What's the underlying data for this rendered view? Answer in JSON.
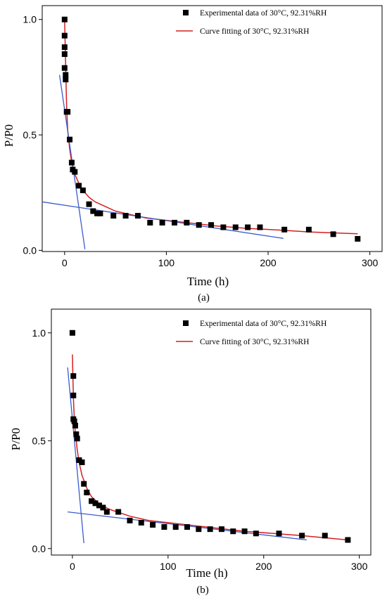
{
  "chart_data": [
    {
      "panel_label": "(a)",
      "type": "scatter",
      "xlabel": "Time (h)",
      "ylabel": "P/P0",
      "xlim": [
        -22,
        312
      ],
      "ylim": [
        -0.005,
        1.06
      ],
      "x_ticks": [
        0,
        100,
        200,
        300
      ],
      "y_ticks": [
        0.0,
        0.5,
        1.0
      ],
      "y_tick_labels": [
        "0.0",
        "0.5",
        "1.0"
      ],
      "legend": {
        "position": "top-right",
        "entries": [
          "Experimental data of 30°C, 92.31%RH",
          "Curve fitting of 30°C, 92.31%RH"
        ]
      },
      "series": [
        {
          "name": "Experimental data of 30°C, 92.31%RH",
          "kind": "points",
          "color": "#000000",
          "x": [
            0,
            0,
            0,
            0,
            0,
            1,
            1,
            2,
            3,
            5,
            7,
            8,
            10,
            14,
            18,
            24,
            28,
            32,
            35,
            48,
            60,
            72,
            84,
            96,
            108,
            120,
            132,
            144,
            156,
            168,
            180,
            192,
            216,
            240,
            264,
            288
          ],
          "y": [
            1.0,
            0.93,
            0.88,
            0.85,
            0.79,
            0.76,
            0.74,
            0.6,
            0.6,
            0.48,
            0.38,
            0.35,
            0.34,
            0.28,
            0.26,
            0.2,
            0.17,
            0.16,
            0.16,
            0.15,
            0.15,
            0.15,
            0.12,
            0.12,
            0.12,
            0.12,
            0.11,
            0.11,
            0.1,
            0.1,
            0.1,
            0.1,
            0.09,
            0.09,
            0.07,
            0.05
          ]
        },
        {
          "name": "Curve fitting of 30°C, 92.31%RH",
          "kind": "curve",
          "color": "#d42020",
          "x": [
            0,
            1,
            2,
            3,
            5,
            7,
            10,
            14,
            18,
            24,
            30,
            40,
            50,
            60,
            80,
            100,
            120,
            150,
            180,
            210,
            240,
            288
          ],
          "y": [
            1.0,
            0.8,
            0.62,
            0.52,
            0.44,
            0.38,
            0.33,
            0.29,
            0.26,
            0.23,
            0.21,
            0.19,
            0.17,
            0.16,
            0.14,
            0.13,
            0.12,
            0.105,
            0.095,
            0.088,
            0.08,
            0.072
          ]
        },
        {
          "kind": "line",
          "color": "#3a5bd0",
          "x": [
            -5,
            20
          ],
          "y": [
            0.76,
            0.005
          ]
        },
        {
          "kind": "line",
          "color": "#3a5bd0",
          "x": [
            -22,
            215
          ],
          "y": [
            0.21,
            0.052
          ]
        }
      ]
    },
    {
      "panel_label": "(b)",
      "type": "scatter",
      "xlabel": "Time (h)",
      "ylabel": "P/P0",
      "xlim": [
        -22,
        312
      ],
      "ylim": [
        -0.03,
        1.11
      ],
      "x_ticks": [
        0,
        100,
        200,
        300
      ],
      "y_ticks": [
        0.0,
        0.5,
        1.0
      ],
      "y_tick_labels": [
        "0.0",
        "0.5",
        "1.0"
      ],
      "legend": {
        "position": "top-right",
        "entries": [
          "Experimental data of 30°C, 92.31%RH",
          "Curve fitting of 30°C, 92.31%RH"
        ]
      },
      "series": [
        {
          "name": "Experimental data of 30°C, 92.31%RH",
          "kind": "points",
          "color": "#000000",
          "x": [
            0,
            1,
            1,
            1,
            2,
            3,
            4,
            5,
            7,
            10,
            12,
            15,
            20,
            24,
            28,
            32,
            36,
            48,
            60,
            72,
            84,
            96,
            108,
            120,
            132,
            144,
            156,
            168,
            180,
            192,
            216,
            240,
            264,
            288
          ],
          "y": [
            1.0,
            0.8,
            0.71,
            0.6,
            0.59,
            0.57,
            0.53,
            0.51,
            0.41,
            0.4,
            0.3,
            0.26,
            0.22,
            0.21,
            0.2,
            0.19,
            0.17,
            0.17,
            0.13,
            0.12,
            0.11,
            0.1,
            0.1,
            0.1,
            0.09,
            0.09,
            0.09,
            0.08,
            0.08,
            0.07,
            0.07,
            0.06,
            0.06,
            0.04
          ]
        },
        {
          "name": "Curve fitting of 30°C, 92.31%RH",
          "kind": "curve",
          "color": "#d42020",
          "x": [
            0,
            1,
            2,
            3,
            5,
            7,
            10,
            15,
            20,
            30,
            40,
            60,
            80,
            100,
            120,
            150,
            180,
            210,
            240,
            288
          ],
          "y": [
            0.9,
            0.7,
            0.6,
            0.54,
            0.46,
            0.4,
            0.34,
            0.28,
            0.24,
            0.2,
            0.18,
            0.15,
            0.13,
            0.12,
            0.11,
            0.095,
            0.08,
            0.07,
            0.06,
            0.04
          ]
        },
        {
          "kind": "line",
          "color": "#3a5bd0",
          "x": [
            -5,
            12
          ],
          "y": [
            0.84,
            0.025
          ]
        },
        {
          "kind": "line",
          "color": "#3a5bd0",
          "x": [
            -5,
            245
          ],
          "y": [
            0.17,
            0.04
          ]
        }
      ]
    }
  ]
}
